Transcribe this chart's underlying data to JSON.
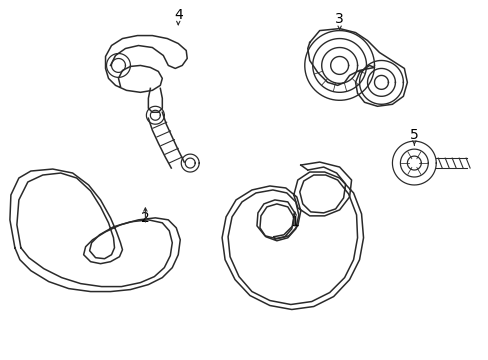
{
  "background_color": "#ffffff",
  "line_color": "#2a2a2a",
  "line_width": 1.1,
  "label_color": "#000000",
  "label_fontsize": 10,
  "figsize": [
    4.89,
    3.6
  ],
  "dpi": 100
}
